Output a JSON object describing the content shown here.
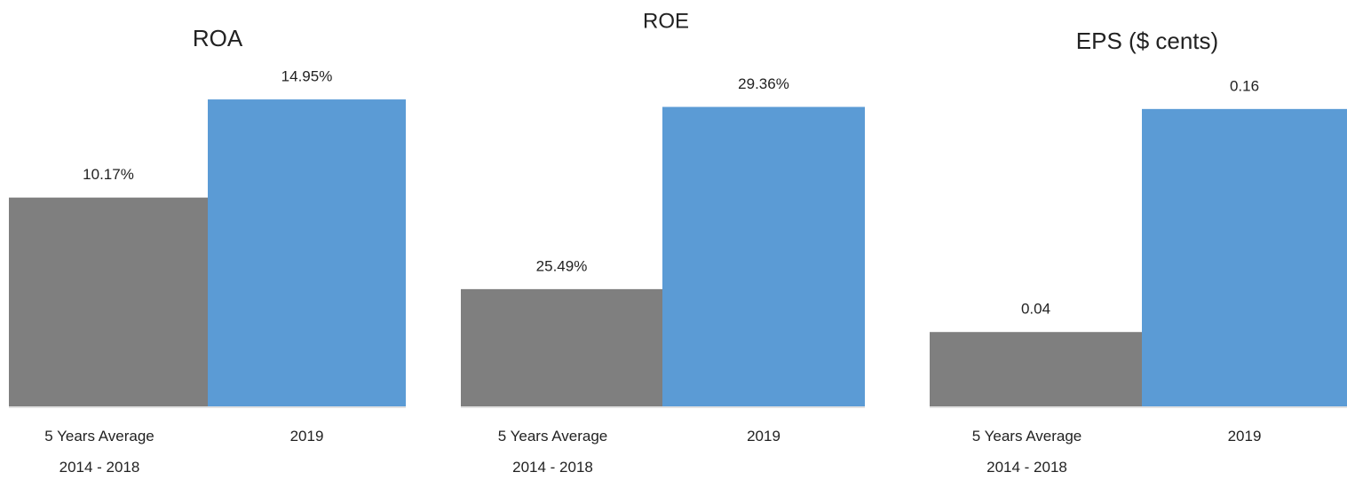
{
  "chart_data": [
    {
      "type": "bar",
      "title": "ROA",
      "categories": [
        "5 Years Average\n2014 - 2018",
        "2019"
      ],
      "values": [
        10.17,
        14.95
      ],
      "value_labels": [
        "10.17%",
        "14.95%"
      ],
      "colors": [
        "#7f7f7f",
        "#5b9bd5"
      ],
      "ylim": [
        0,
        17.2
      ]
    },
    {
      "type": "bar",
      "title": "ROE",
      "categories": [
        "5 Years Average\n2014 - 2018",
        "2019"
      ],
      "values": [
        25.49,
        29.36
      ],
      "value_labels": [
        "25.49%",
        "29.36%"
      ],
      "colors": [
        "#7f7f7f",
        "#5b9bd5"
      ],
      "ylim": [
        23,
        30.5
      ]
    },
    {
      "type": "bar",
      "title": "EPS ($ cents)",
      "categories": [
        "5 Years Average\n2014 - 2018",
        "2019"
      ],
      "values": [
        0.04,
        0.16
      ],
      "colors": [
        "#7f7f7f",
        "#5b9bd5"
      ],
      "ylim": [
        0,
        0.19
      ]
    }
  ]
}
